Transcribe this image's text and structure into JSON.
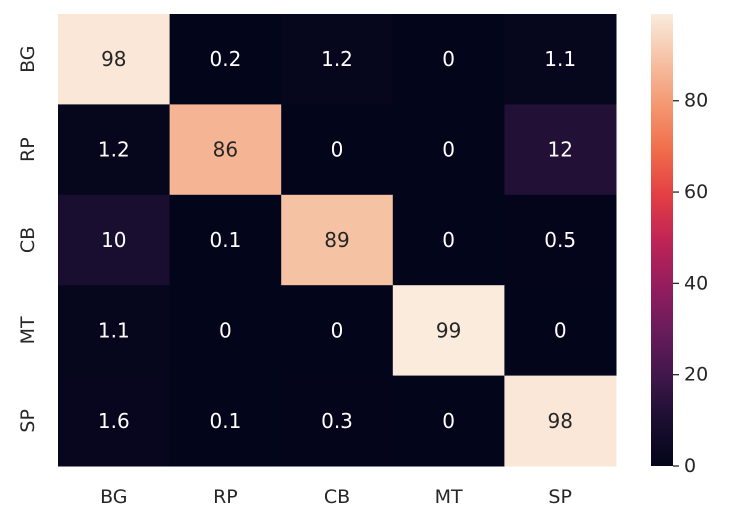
{
  "chart_data": {
    "type": "heatmap",
    "x_categories": [
      "BG",
      "RP",
      "CB",
      "MT",
      "SP"
    ],
    "y_categories": [
      "BG",
      "RP",
      "CB",
      "MT",
      "SP"
    ],
    "values": [
      [
        98,
        0.2,
        1.2,
        0,
        1.1
      ],
      [
        1.2,
        86,
        0,
        0,
        12
      ],
      [
        10,
        0.1,
        89,
        0,
        0.5
      ],
      [
        1.1,
        0,
        0,
        99,
        0
      ],
      [
        1.6,
        0.1,
        0.3,
        0,
        98
      ]
    ],
    "annotations": [
      [
        "98",
        "0.2",
        "1.2",
        "0",
        "1.1"
      ],
      [
        "1.2",
        "86",
        "0",
        "0",
        "12"
      ],
      [
        "10",
        "0.1",
        "89",
        "0",
        "0.5"
      ],
      [
        "1.1",
        "0",
        "0",
        "99",
        "0"
      ],
      [
        "1.6",
        "0.1",
        "0.3",
        "0",
        "98"
      ]
    ],
    "colorbar": {
      "min": 0,
      "max": 99,
      "ticks": [
        0,
        20,
        40,
        60,
        80
      ],
      "tick_labels": [
        "0",
        "20",
        "40",
        "60",
        "80"
      ],
      "colormap": "rocket"
    },
    "title": "",
    "xlabel": "",
    "ylabel": ""
  }
}
